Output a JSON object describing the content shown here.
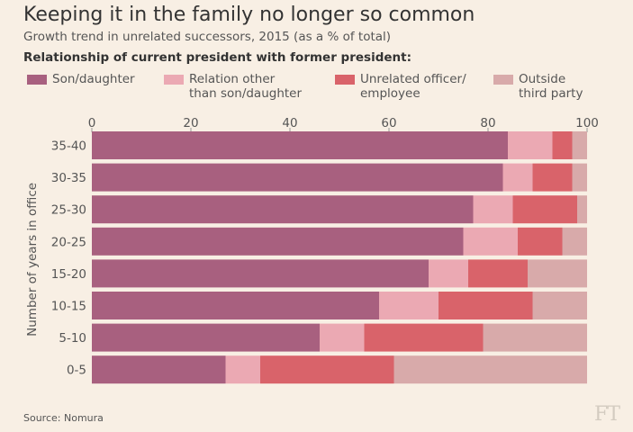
{
  "title": "Keeping it in the family no longer so common",
  "subtitle": "Growth trend in unrelated successors, 2015 (as a % of total)",
  "legend_title": "Relationship of current president with former president:",
  "source": "Source: Nomura",
  "logo": "FT",
  "chart_data": {
    "type": "bar",
    "orientation": "horizontal",
    "stacked": true,
    "title": "Keeping it in the family no longer so common",
    "subtitle": "Growth trend in unrelated successors, 2015 (as a % of total)",
    "ylabel": "Number of years in office",
    "xlim": [
      0,
      100
    ],
    "xticks": [
      "0",
      "20",
      "40",
      "60",
      "80",
      "100"
    ],
    "categories": [
      "35-40",
      "30-35",
      "25-30",
      "20-25",
      "15-20",
      "10-15",
      "5-10",
      "0-5"
    ],
    "legend_position": "top",
    "series": [
      {
        "name": "Son/daughter",
        "name_lines": [
          "Son/daughter"
        ],
        "color": "#a8607f",
        "values": [
          84,
          83,
          77,
          75,
          68,
          58,
          46,
          27
        ]
      },
      {
        "name": "Relation other than son/daughter",
        "name_lines": [
          "Relation other",
          "than son/daughter"
        ],
        "color": "#eba9b3",
        "values": [
          9,
          6,
          8,
          11,
          8,
          12,
          9,
          7
        ]
      },
      {
        "name": "Unrelated officer/ employee",
        "name_lines": [
          "Unrelated officer/",
          "employee"
        ],
        "color": "#d9636a",
        "values": [
          4,
          8,
          13,
          9,
          12,
          19,
          24,
          27
        ]
      },
      {
        "name": "Outside third party",
        "name_lines": [
          "Outside",
          "third party"
        ],
        "color": "#d8aaaa",
        "values": [
          3,
          3,
          2,
          5,
          12,
          11,
          21,
          39
        ]
      }
    ]
  }
}
